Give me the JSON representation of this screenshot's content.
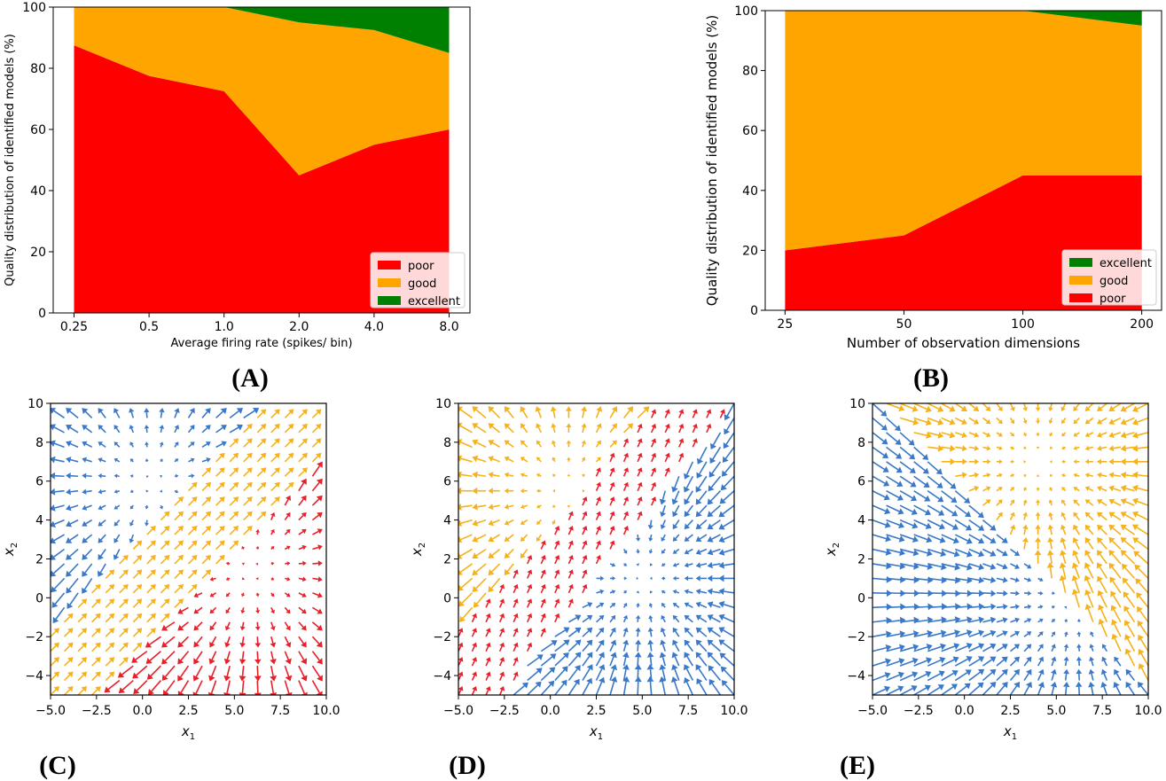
{
  "chart_data": [
    {
      "id": "A",
      "panel_label": "(A)",
      "type": "area",
      "stacked": true,
      "categories": [
        "0.25",
        "0.5",
        "1.0",
        "2.0",
        "4.0",
        "8.0"
      ],
      "series": [
        {
          "name": "poor",
          "color": "#ff0000",
          "values": [
            87.5,
            77.5,
            72.5,
            45,
            55,
            60
          ]
        },
        {
          "name": "good",
          "color": "#ffa500",
          "values": [
            12.5,
            22.5,
            27.5,
            50,
            37.5,
            25
          ]
        },
        {
          "name": "excellent",
          "color": "#008000",
          "values": [
            0,
            0,
            0,
            5,
            7.5,
            15
          ]
        }
      ],
      "legend_order": [
        "poor",
        "good",
        "excellent"
      ],
      "legend_position": "lower-right",
      "xlabel": "Average firing rate (spikes/ bin)",
      "ylabel": "Quality distribution of identified models (%)",
      "ylim": [
        0,
        100
      ],
      "yticks": [
        "0",
        "20",
        "40",
        "60",
        "80",
        "100"
      ]
    },
    {
      "id": "B",
      "panel_label": "(B)",
      "type": "area",
      "stacked": true,
      "categories": [
        "25",
        "50",
        "100",
        "200"
      ],
      "series": [
        {
          "name": "poor",
          "color": "#ff0000",
          "values": [
            20,
            25,
            45,
            45
          ]
        },
        {
          "name": "good",
          "color": "#ffa500",
          "values": [
            80,
            75,
            55,
            50
          ]
        },
        {
          "name": "excellent",
          "color": "#008000",
          "values": [
            0,
            0,
            0,
            5
          ]
        }
      ],
      "legend_order": [
        "excellent",
        "good",
        "poor"
      ],
      "legend_position": "lower-right",
      "xlabel": "Number of observation dimensions",
      "ylabel": "Quality distribution of identified models (%)",
      "ylim": [
        0,
        100
      ],
      "yticks": [
        "0",
        "20",
        "40",
        "60",
        "80",
        "100"
      ]
    },
    {
      "id": "C",
      "panel_label": "(C)",
      "type": "quiver",
      "xlabel_base": "x",
      "xlabel_sub": "1",
      "ylabel_base": "x",
      "ylabel_sub": "2",
      "xlim": [
        -5,
        10
      ],
      "ylim": [
        -5,
        10
      ],
      "xticks": [
        "−5.0",
        "−2.5",
        "0.0",
        "2.5",
        "5.0",
        "7.5",
        "10.0"
      ],
      "yticks": [
        "−4",
        "−2",
        "0",
        "2",
        "4",
        "6",
        "8",
        "10"
      ],
      "regions": [
        {
          "color": "#3a78c9",
          "kind": "source",
          "center": [
            0.5,
            6.0
          ],
          "gain": 0.35
        },
        {
          "color": "#f5b21b",
          "kind": "flow",
          "direction": [
            1,
            1
          ],
          "gain": 1.0
        },
        {
          "color": "#e8202a",
          "kind": "source",
          "center": [
            6.0,
            1.5
          ],
          "gain": 0.35
        }
      ]
    },
    {
      "id": "D",
      "panel_label": "(D)",
      "type": "quiver",
      "xlabel_base": "x",
      "xlabel_sub": "1",
      "ylabel_base": "x",
      "ylabel_sub": "2",
      "xlim": [
        -5,
        10
      ],
      "ylim": [
        -5,
        10
      ],
      "xticks": [
        "−5.0",
        "−2.5",
        "0.0",
        "2.5",
        "5.0",
        "7.5",
        "10.0"
      ],
      "yticks": [
        "−4",
        "−2",
        "0",
        "2",
        "4",
        "6",
        "8",
        "10"
      ],
      "regions": [
        {
          "color": "#f5b21b",
          "kind": "source",
          "center": [
            1.0,
            5.5
          ],
          "gain": 0.35
        },
        {
          "color": "#e8202a",
          "kind": "flow",
          "direction": [
            0.45,
            1
          ],
          "gain": 1.0
        },
        {
          "color": "#3a78c9",
          "kind": "sink",
          "center": [
            5.0,
            1.0
          ],
          "gain": 0.35
        }
      ]
    },
    {
      "id": "E",
      "panel_label": "(E)",
      "type": "quiver",
      "xlabel_base": "x",
      "xlabel_sub": "1",
      "ylabel_base": "x",
      "ylabel_sub": "2",
      "xlim": [
        -5,
        10
      ],
      "ylim": [
        -5,
        10
      ],
      "xticks": [
        "−5.0",
        "−2.5",
        "0.0",
        "2.5",
        "5.0",
        "7.5",
        "10.0"
      ],
      "yticks": [
        "−4",
        "−2",
        "0",
        "2",
        "4",
        "6",
        "8",
        "10"
      ],
      "regions": [
        {
          "color": "#f5b21b",
          "kind": "sink",
          "center": [
            4.0,
            7.0
          ],
          "gain": 0.3
        },
        {
          "color": "#3a78c9",
          "kind": "sink",
          "center": [
            6.0,
            0.0
          ],
          "gain": 0.3
        }
      ]
    }
  ]
}
